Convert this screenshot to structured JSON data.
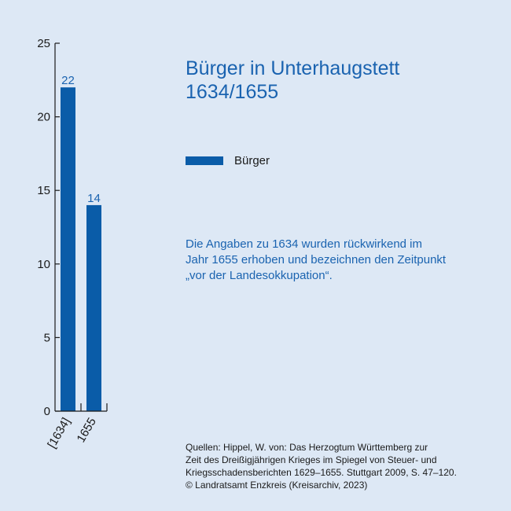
{
  "colors": {
    "bar": "#0a5ca8",
    "title": "#1a63b0",
    "axis": "#1a1a1a",
    "background": "#dde8f5"
  },
  "title_lines": [
    "Bürger in Unterhaugstett",
    "1634/1655"
  ],
  "legend": {
    "label": "Bürger"
  },
  "note_lines": [
    "Die Angaben zu 1634 wurden rückwirkend im",
    "Jahr 1655 erhoben und bezeichnen den Zeitpunkt",
    "„vor der Landesokkupation“."
  ],
  "sources_lines": [
    "Quellen: Hippel, W. von: Das Herzogtum Württemberg zur",
    "Zeit des Dreißigjährigen Krieges im Spiegel von Steuer- und",
    "Kriegsschadensberichten 1629–1655. Stuttgart 2009, S. 47–120.",
    "© Landratsamt Enzkreis (Kreisarchiv, 2023)"
  ],
  "chart_data": {
    "type": "bar",
    "categories": [
      "[1634]",
      "1655"
    ],
    "series": [
      {
        "name": "Bürger",
        "values": [
          22,
          14
        ]
      }
    ],
    "ylim": [
      0,
      25
    ],
    "yticks": [
      0,
      5,
      10,
      15,
      20,
      25
    ],
    "title": "Bürger in Unterhaugstett 1634/1655",
    "xlabel": "",
    "ylabel": "",
    "grid": false,
    "legend_position": "right"
  }
}
